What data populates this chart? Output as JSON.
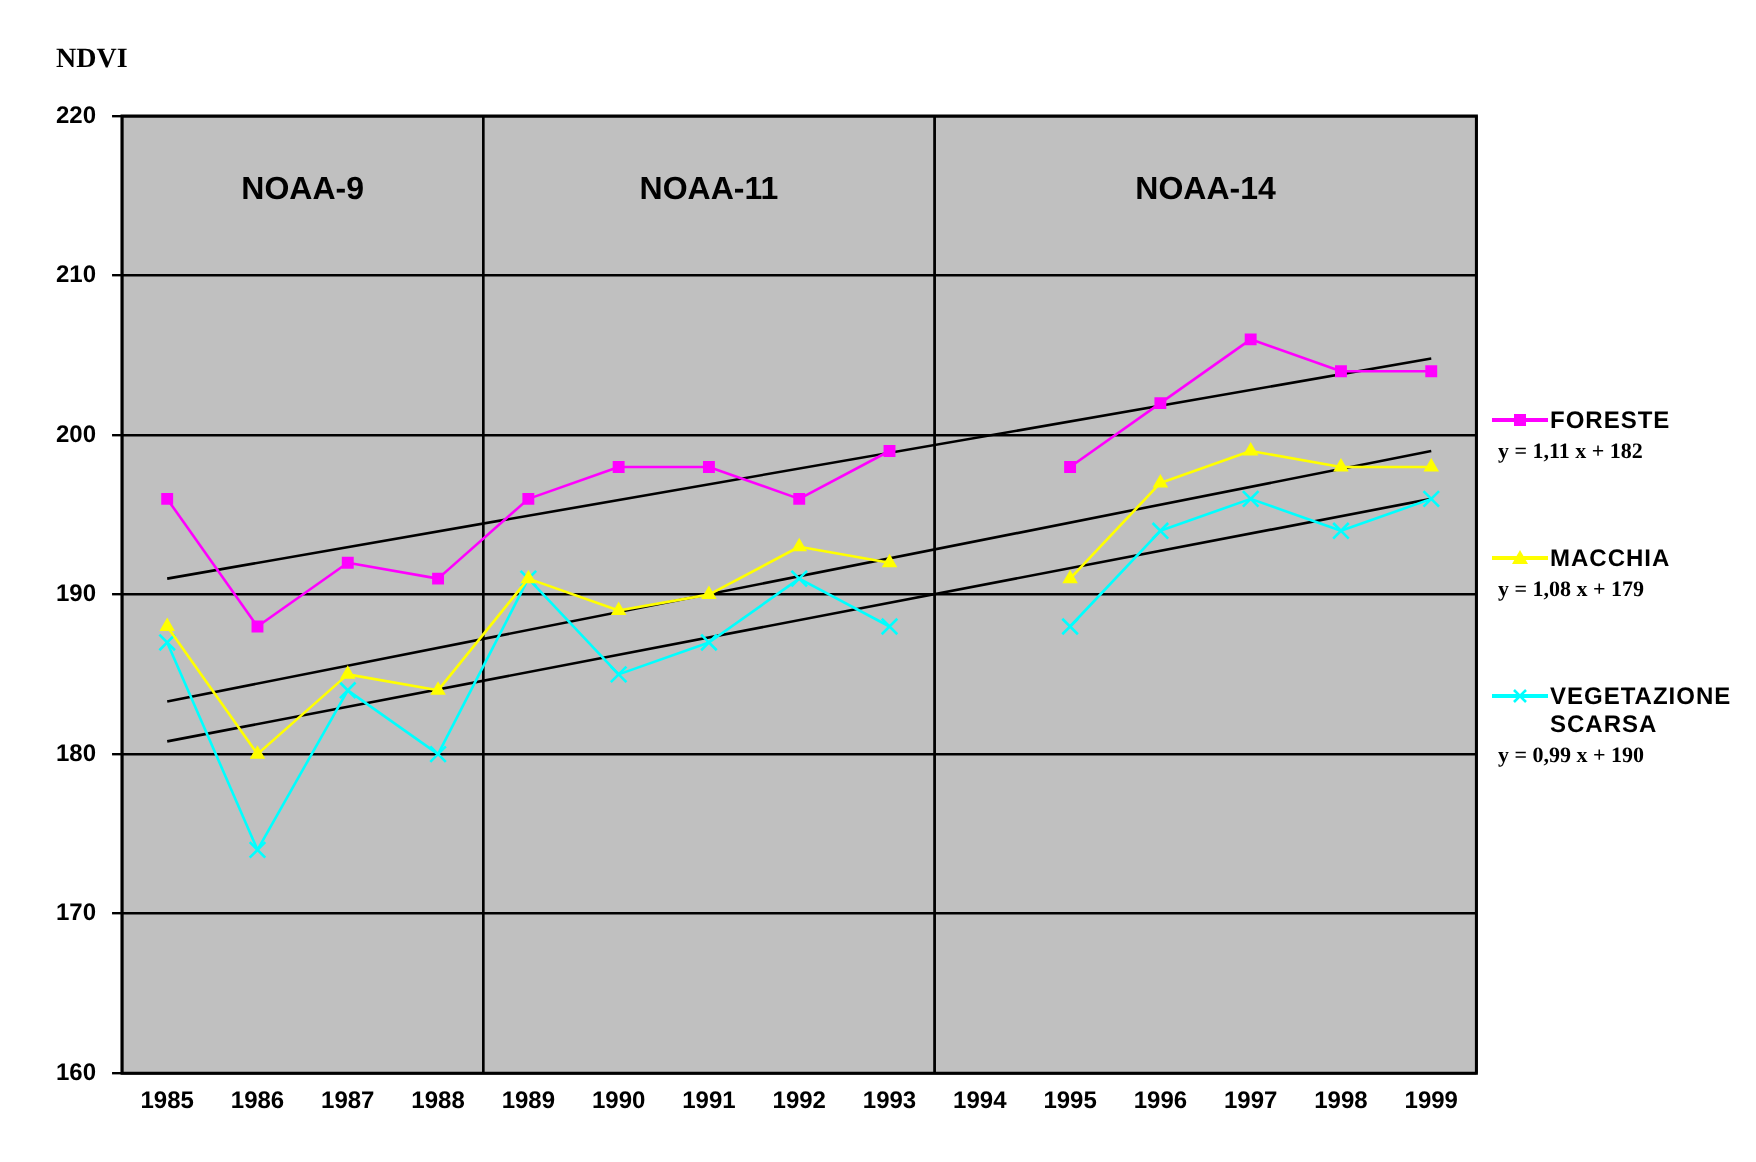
{
  "chart_data": {
    "type": "line",
    "ylabel": "NDVI",
    "categories": [
      "1985",
      "1986",
      "1987",
      "1988",
      "1989",
      "1990",
      "1991",
      "1992",
      "1993",
      "1994",
      "1995",
      "1996",
      "1997",
      "1998",
      "1999"
    ],
    "series": [
      {
        "name": "FORESTE",
        "color": "#ff00ff",
        "marker": "square",
        "values": [
          196,
          188,
          192,
          191,
          196,
          198,
          198,
          196,
          199,
          null,
          198,
          202,
          206,
          204,
          204
        ]
      },
      {
        "name": "MACCHIA",
        "color": "#ffff00",
        "marker": "triangle",
        "values": [
          188,
          180,
          185,
          184,
          191,
          189,
          190,
          193,
          192,
          null,
          191,
          197,
          199,
          198,
          198
        ]
      },
      {
        "name": "VEGETAZIONE SCARSA",
        "color": "#00ffff",
        "marker": "cross",
        "values": [
          187,
          174,
          184,
          180,
          191,
          185,
          187,
          191,
          188,
          null,
          188,
          194,
          196,
          194,
          196
        ]
      },
      {
        "type": "line",
        "color": "#000000",
        "marker": "none",
        "values": [
          191,
          null,
          null,
          null,
          null,
          null,
          null,
          null,
          null,
          null,
          null,
          null,
          null,
          null,
          204.8
        ]
      },
      {
        "type": "line",
        "color": "#000000",
        "marker": "none",
        "values": [
          183.3,
          null,
          null,
          null,
          null,
          null,
          null,
          null,
          null,
          null,
          null,
          null,
          null,
          null,
          199
        ]
      },
      {
        "type": "line",
        "color": "#000000",
        "marker": "none",
        "values": [
          180.8,
          null,
          null,
          null,
          null,
          null,
          null,
          null,
          null,
          null,
          null,
          null,
          null,
          null,
          196
        ]
      }
    ],
    "ylim": [
      160,
      220
    ],
    "yticks": [
      160,
      170,
      180,
      190,
      200,
      210,
      220
    ],
    "grid": "y",
    "legend": "right",
    "bands": [
      {
        "axis": "x",
        "from": "1985",
        "to": "1988",
        "label": "NOAA-9",
        "color": "#c0c0c0"
      },
      {
        "axis": "x",
        "from": "1989",
        "to": "1993",
        "label": "NOAA-11",
        "color": "#c0c0c0"
      },
      {
        "axis": "x",
        "from": "1994",
        "to": "1999",
        "label": "NOAA-14",
        "color": "#c0c0c0"
      }
    ],
    "annotations": [
      "y = 1,11 x + 182",
      "y = 1,08 x + 179",
      "y = 0,99 x + 190"
    ]
  }
}
